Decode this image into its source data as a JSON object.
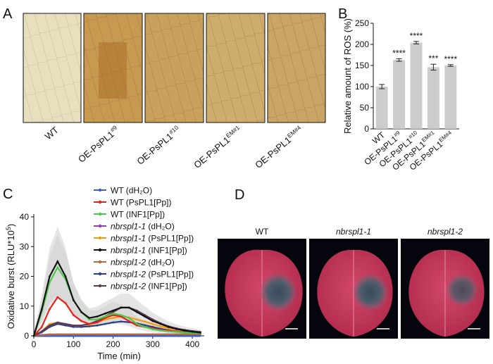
{
  "panels": {
    "a": {
      "letter": "A",
      "images": [
        {
          "label": "WT",
          "sup": ""
        },
        {
          "label": "OE-PsPL1",
          "sup": "#9"
        },
        {
          "label": "OE-PsPL1",
          "sup": "#10"
        },
        {
          "label": "OE-PsPL1",
          "sup": "EM#1"
        },
        {
          "label": "OE-PsPL1",
          "sup": "EM#4"
        }
      ]
    },
    "b": {
      "letter": "B"
    },
    "c": {
      "letter": "C"
    },
    "d": {
      "letter": "D",
      "leaves": [
        {
          "label": "WT",
          "italic": false
        },
        {
          "label": "nbrspl1-1",
          "italic": true
        },
        {
          "label": "nbrspl1-2",
          "italic": true
        }
      ]
    }
  },
  "chart_data": [
    {
      "type": "bar",
      "panel": "B",
      "ylabel": "Relative amount of ROS (%)",
      "ylim": [
        0,
        250
      ],
      "yticks": [
        0,
        50,
        100,
        150,
        200,
        250
      ],
      "categories": [
        {
          "label": "WT",
          "sup": ""
        },
        {
          "label": "OE-PsPL1",
          "sup": "#9"
        },
        {
          "label": "OE-PsPL1",
          "sup": "#10"
        },
        {
          "label": "OE-PsPL1",
          "sup": "EM#1"
        },
        {
          "label": "OE-PsPL1",
          "sup": "EM#4"
        }
      ],
      "values": [
        100,
        163,
        204,
        146,
        150
      ],
      "errors": [
        5,
        3,
        3,
        7,
        2
      ],
      "significance": [
        "",
        "****",
        "****",
        "***",
        "****"
      ],
      "bar_color": "#cccccc"
    },
    {
      "type": "line",
      "panel": "C",
      "xlabel": "Time (min)",
      "ylabel": "Oxidative burst (RLU*10",
      "ylabel_sup": "5",
      "ylabel_end": ")",
      "xlim": [
        0,
        430
      ],
      "ylim": [
        0,
        40
      ],
      "xticks": [
        0,
        100,
        200,
        300,
        400
      ],
      "yticks": [
        0,
        10,
        20,
        30,
        40
      ],
      "x": [
        0,
        20,
        40,
        60,
        80,
        100,
        120,
        140,
        160,
        180,
        200,
        220,
        240,
        260,
        280,
        300,
        320,
        340,
        360,
        380,
        400,
        420
      ],
      "series": [
        {
          "name": "WT (dH₂O)",
          "italic": "",
          "rest": "",
          "color": "#3a5fcd",
          "values": [
            0,
            0,
            0,
            0,
            0,
            0,
            0,
            0,
            0,
            0,
            0,
            0,
            0,
            0,
            0,
            0,
            0,
            0,
            0,
            0,
            0,
            0
          ]
        },
        {
          "name": "WT (PsPL1[Pp])",
          "italic": "",
          "rest": "",
          "color": "#e8211c",
          "values": [
            0,
            3,
            9,
            13,
            11,
            7,
            5,
            4,
            4.5,
            6,
            7,
            6.5,
            5,
            3.5,
            3,
            2.5,
            2,
            1.8,
            1.5,
            1.3,
            1.1,
            1
          ]
        },
        {
          "name": "WT (INF1[Pp])",
          "italic": "",
          "rest": "",
          "color": "#4bc94b",
          "values": [
            0,
            8,
            18,
            23,
            19,
            12,
            8,
            5.5,
            5.5,
            6.5,
            7.5,
            7,
            6,
            4,
            3,
            2.2,
            1.8,
            1.5,
            1.3,
            1.1,
            1,
            0.9
          ]
        },
        {
          "name": "",
          "italic": "nbrspl1-1",
          "rest": " (dH₂O)",
          "color": "#8e44ad",
          "values": [
            0,
            0.3,
            0.5,
            0.5,
            0.5,
            0.5,
            0.5,
            0.5,
            0.5,
            0.5,
            0.5,
            0.5,
            0.5,
            0.5,
            0.5,
            0.5,
            0.5,
            0.5,
            0.5,
            0.5,
            0.5,
            0.5
          ]
        },
        {
          "name": "",
          "italic": "nbrspl1-1",
          "rest": " (PsPL1[Pp])",
          "color": "#f39c12",
          "values": [
            0,
            1.5,
            4,
            4.5,
            4,
            3.5,
            3.5,
            3.8,
            4.5,
            5.5,
            6,
            6.5,
            6.2,
            5.5,
            4.8,
            4,
            3.2,
            2.6,
            2.1,
            1.7,
            1.4,
            1.2
          ]
        },
        {
          "name": "",
          "italic": "nbrspl1-1",
          "rest": " (INF1[Pp])",
          "color": "#111111",
          "values": [
            0,
            9,
            20,
            25,
            20,
            12,
            8,
            6,
            6.5,
            7.5,
            8.5,
            9.5,
            9.5,
            8,
            6.5,
            5,
            4,
            3,
            2.3,
            1.8,
            1.4,
            1.1
          ]
        },
        {
          "name": "",
          "italic": "nbrspl1-2",
          "rest": " (dH₂O)",
          "color": "#b86b3a",
          "values": [
            0,
            0.3,
            0.4,
            0.5,
            0.5,
            0.5,
            0.5,
            0.5,
            0.5,
            0.5,
            0.5,
            0.5,
            0.5,
            0.5,
            0.5,
            0.5,
            0.5,
            0.5,
            0.5,
            0.5,
            0.5,
            0.5
          ]
        },
        {
          "name": "",
          "italic": "nbrspl1-2",
          "rest": " (PsPL1[Pp])",
          "color": "#2c3e80",
          "values": [
            0,
            1.2,
            3,
            4,
            3.5,
            3,
            3,
            3.2,
            3.5,
            4,
            4.5,
            4.8,
            4.6,
            4.2,
            3.6,
            3,
            2.4,
            1.9,
            1.5,
            1.2,
            1,
            0.9
          ]
        },
        {
          "name": "",
          "italic": "nbrspl1-2",
          "rest": " (INF1[Pp])",
          "color": "#5b3a57",
          "values": [
            0,
            1.5,
            3.5,
            4.5,
            4,
            3.5,
            3.5,
            4,
            5,
            6.5,
            8,
            9.5,
            9.5,
            8.5,
            7,
            5.5,
            4.2,
            3.2,
            2.5,
            2,
            1.6,
            1.3
          ]
        }
      ]
    }
  ]
}
